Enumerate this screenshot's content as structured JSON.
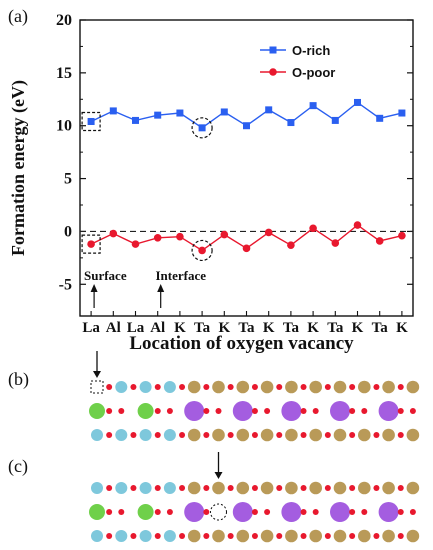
{
  "chart_data": {
    "type": "line",
    "panel": "(a)",
    "xlabel": "Location of oxygen vacancy",
    "ylabel": "Formation energy (eV)",
    "categories": [
      "La",
      "Al",
      "La",
      "Al",
      "K",
      "Ta",
      "K",
      "Ta",
      "K",
      "Ta",
      "K",
      "Ta",
      "K",
      "Ta",
      "K"
    ],
    "ylim": [
      -8,
      20
    ],
    "yticks": [
      -5,
      0,
      5,
      10,
      15,
      20
    ],
    "reference_line": 0,
    "series": [
      {
        "name": "O-rich",
        "color": "#2a5ff0",
        "marker": "square",
        "values": [
          10.4,
          11.4,
          10.5,
          11.0,
          11.2,
          9.8,
          11.3,
          10.0,
          11.5,
          10.3,
          11.9,
          10.5,
          12.2,
          10.7,
          11.2
        ]
      },
      {
        "name": "O-poor",
        "color": "#e8182e",
        "marker": "circle",
        "values": [
          -1.2,
          -0.2,
          -1.2,
          -0.6,
          -0.5,
          -1.8,
          -0.3,
          -1.6,
          -0.1,
          -1.3,
          0.3,
          -1.1,
          0.6,
          -0.9,
          -0.4
        ]
      }
    ],
    "annotations": [
      "Surface",
      "Interface"
    ],
    "highlighted_indices": [
      0,
      5
    ],
    "legend_position": "top-right"
  },
  "structures": [
    {
      "panel": "(b)",
      "vacancy_column": 0
    },
    {
      "panel": "(c)",
      "vacancy_column": 5
    }
  ],
  "colors": {
    "La": "#7ec8dc",
    "Al_center": "#6fd04a",
    "K": "#a45de0",
    "Ta": "#b99a58",
    "O": "#e8182e"
  }
}
